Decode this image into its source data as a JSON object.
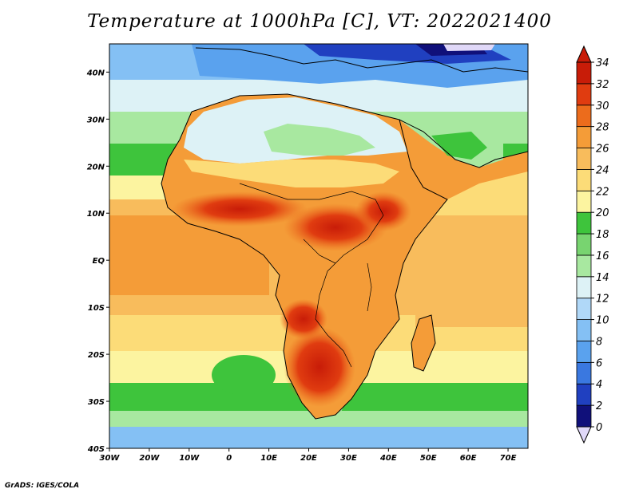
{
  "title": "Temperature at 1000hPa [C], VT: 2022021400",
  "credit": "GrADS: IGES/COLA",
  "map": {
    "lon_range": [
      -30,
      75
    ],
    "lat_range": [
      -40,
      46
    ],
    "lon_ticks": [
      "30W",
      "20W",
      "10W",
      "0",
      "10E",
      "20E",
      "30E",
      "40E",
      "50E",
      "60E",
      "70E"
    ],
    "lat_ticks": [
      "40N",
      "30N",
      "20N",
      "10N",
      "EQ",
      "10S",
      "20S",
      "30S",
      "40S"
    ]
  },
  "colorbar": {
    "ticks": [
      "0",
      "2",
      "4",
      "6",
      "8",
      "10",
      "12",
      "14",
      "16",
      "18",
      "20",
      "22",
      "24",
      "26",
      "28",
      "30",
      "32",
      "34"
    ],
    "colors": [
      "#e0d8f8",
      "#10107a",
      "#2040c0",
      "#3a78e0",
      "#5aa2ee",
      "#84c0f4",
      "#b0d8f8",
      "#ddf2f6",
      "#a8e8a0",
      "#78d470",
      "#3ec43c",
      "#fcf4a0",
      "#fcdc78",
      "#f8bc5c",
      "#f49c38",
      "#ec6c1c",
      "#e03c10",
      "#c81c08",
      "#c81c08"
    ]
  }
}
